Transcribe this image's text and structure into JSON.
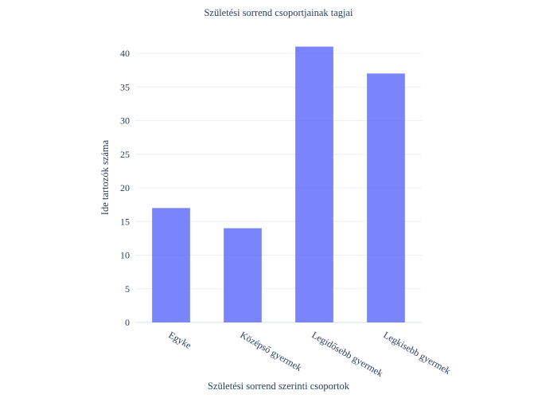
{
  "chart_data": {
    "type": "bar",
    "title": "Születési sorrend csoportjainak tagjai",
    "xlabel": "Születési sorrend szerinti csoportok",
    "ylabel": "Ide tartozók száma",
    "categories": [
      "Egyke",
      "Középső gyermek",
      "Legidősebb gyermek",
      "Legkisebb gyermek"
    ],
    "values": [
      17,
      14,
      41,
      37
    ],
    "ylim": [
      0,
      43
    ],
    "yticks": [
      0,
      5,
      10,
      15,
      20,
      25,
      30,
      35,
      40
    ],
    "grid": true,
    "bar_color": "#636efa"
  }
}
